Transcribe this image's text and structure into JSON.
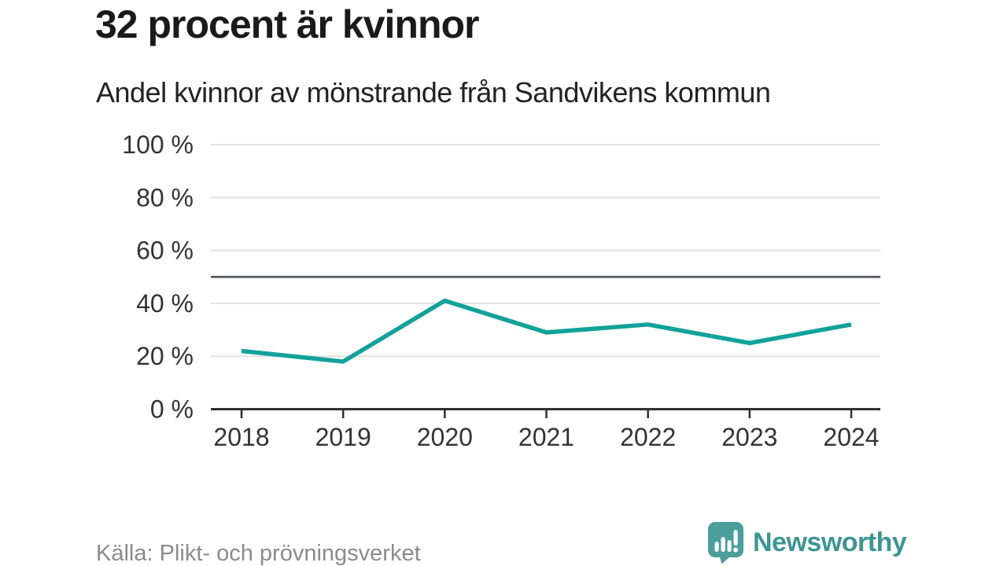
{
  "header": {
    "title": "32 procent är kvinnor",
    "subtitle": "Andel kvinnor av mönstrande från Sandvikens kommun"
  },
  "chart_data": {
    "type": "line",
    "x": [
      "2018",
      "2019",
      "2020",
      "2021",
      "2022",
      "2023",
      "2024"
    ],
    "series": [
      {
        "name": "Andel kvinnor av mönstrande",
        "values": [
          22,
          18,
          41,
          29,
          32,
          25,
          32
        ]
      }
    ],
    "unit": "%",
    "title": "32 procent är kvinnor",
    "subtitle": "Andel kvinnor av mönstrande från Sandvikens kommun",
    "xlabel": "",
    "ylabel": "",
    "ylim": [
      0,
      100
    ],
    "yticks": [
      {
        "value": 0,
        "label": "0 %"
      },
      {
        "value": 20,
        "label": "20 %"
      },
      {
        "value": 40,
        "label": "40 %"
      },
      {
        "value": 60,
        "label": "60 %"
      },
      {
        "value": 80,
        "label": "80 %"
      },
      {
        "value": 100,
        "label": "100 %"
      }
    ],
    "reference_line": {
      "value": 50
    },
    "grid": "horizontal",
    "legend": "none"
  },
  "colors": {
    "line": "#11a29a",
    "grid": "#e3e3e3",
    "reference": "#56565f",
    "axis": "#2f2f2f",
    "tick_text": "#333333",
    "title_text": "#1a1a1a",
    "subtitle_text": "#222222",
    "source_text": "#8b8b8b",
    "brand_teal": "#4a9e9b",
    "brand_text": "#3a9693"
  },
  "footer": {
    "source": "Källa: Plikt- och prövningsverket",
    "brand": "Newsworthy"
  },
  "icons": {
    "logo": "newsworthy-bar-chart-bubble-icon"
  }
}
